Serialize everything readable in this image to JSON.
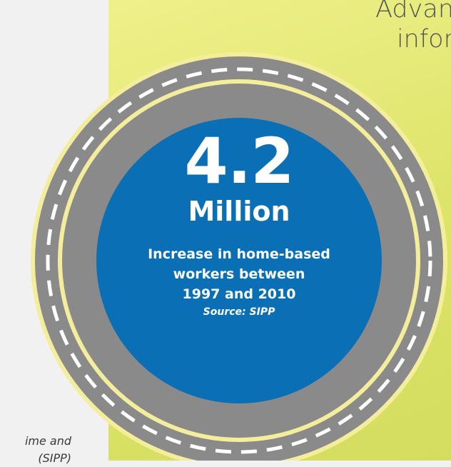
{
  "left_caption": {
    "line1": "ime and",
    "line2": "(SIPP)"
  },
  "heading": {
    "line1": "Advan",
    "line2": "infor"
  },
  "stat": {
    "value": "4.2",
    "unit": "Million",
    "description_lines": [
      "Increase in home-based",
      "workers between",
      "1997 and 2010"
    ],
    "source": "Source: SIPP"
  },
  "colors": {
    "road": "#8a8a8a",
    "road_edge": "#f4ee9c",
    "center_circle": "#0a6fb5",
    "panel": "#dde46a",
    "dash": "#ffffff"
  }
}
